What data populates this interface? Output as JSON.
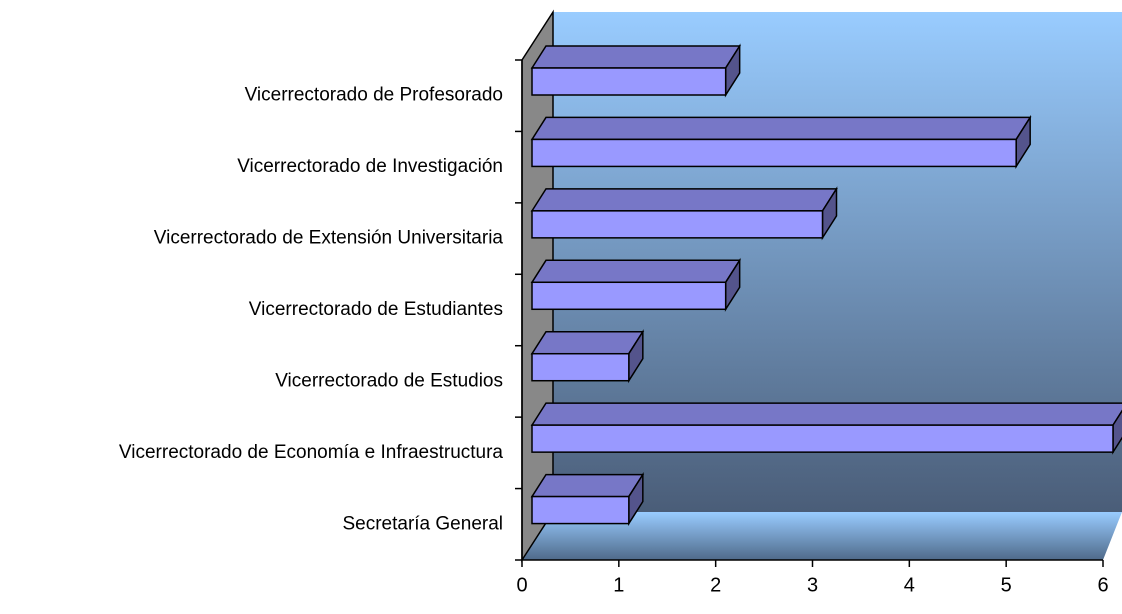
{
  "chart_data": {
    "type": "bar3d_horizontal",
    "categories": [
      "Secretaría General",
      "Vicerrectorado de Economía e Infraestructura",
      "Vicerrectorado de Estudios",
      "Vicerrectorado de Estudiantes",
      "Vicerrectorado de Extensión Universitaria",
      "Vicerrectorado de Investigación",
      "Vicerrectorado de Profesorado"
    ],
    "values": [
      1,
      6,
      1,
      2,
      3,
      5,
      2
    ],
    "color": "#9999ff",
    "xlim": [
      0,
      6
    ],
    "xticks": [
      0,
      1,
      2,
      3,
      4,
      5,
      6
    ]
  }
}
